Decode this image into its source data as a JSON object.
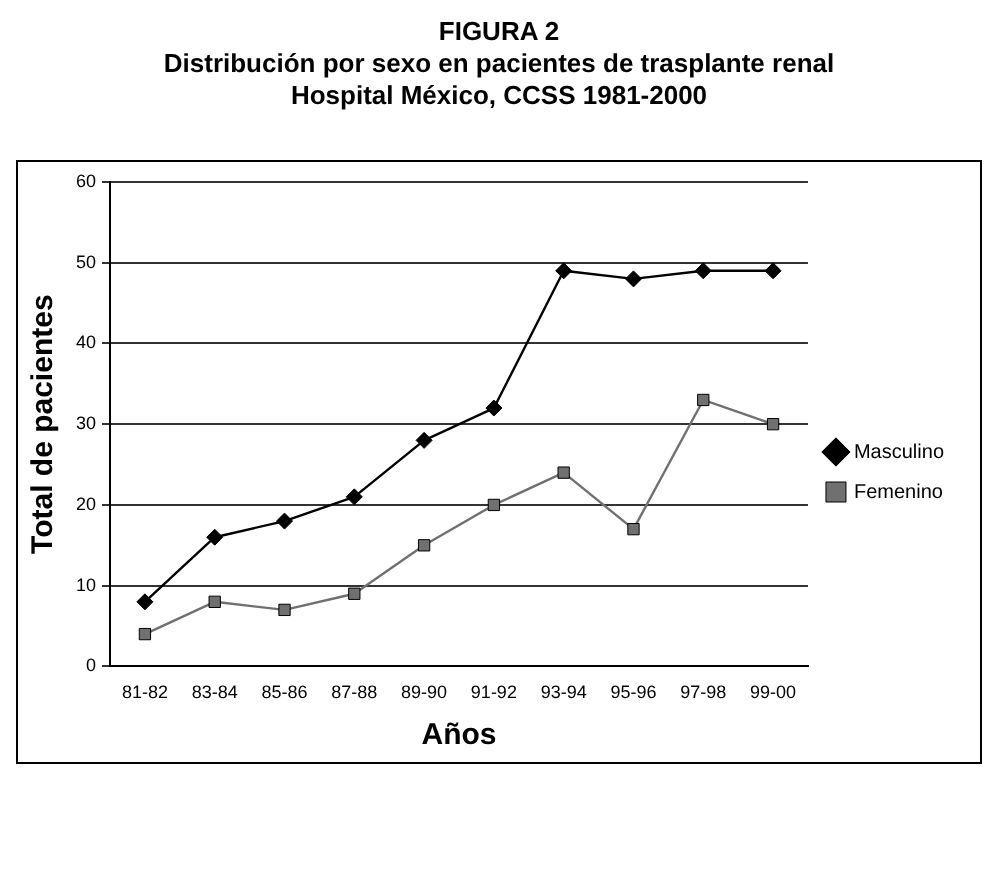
{
  "chart_data": {
    "type": "line",
    "title": "FIGURA 2\nDistribución por sexo en pacientes de trasplante renal\nHospital México, CCSS 1981-2000",
    "xlabel": "Años",
    "ylabel": "Total de pacientes",
    "categories": [
      "81-82",
      "83-84",
      "85-86",
      "87-88",
      "89-90",
      "91-92",
      "93-94",
      "95-96",
      "97-98",
      "99-00"
    ],
    "series": [
      {
        "name": "Masculino",
        "color": "#000000",
        "marker": "diamond",
        "values": [
          8,
          16,
          18,
          21,
          28,
          32,
          49,
          48,
          49,
          49
        ]
      },
      {
        "name": "Femenino",
        "color": "#707070",
        "marker": "square",
        "values": [
          4,
          8,
          7,
          9,
          15,
          20,
          24,
          17,
          33,
          30
        ]
      }
    ],
    "ylim": [
      0,
      60
    ],
    "yticks": [
      0,
      10,
      20,
      30,
      40,
      50,
      60
    ],
    "grid": "y",
    "legend": "right",
    "line_style": "solid"
  }
}
